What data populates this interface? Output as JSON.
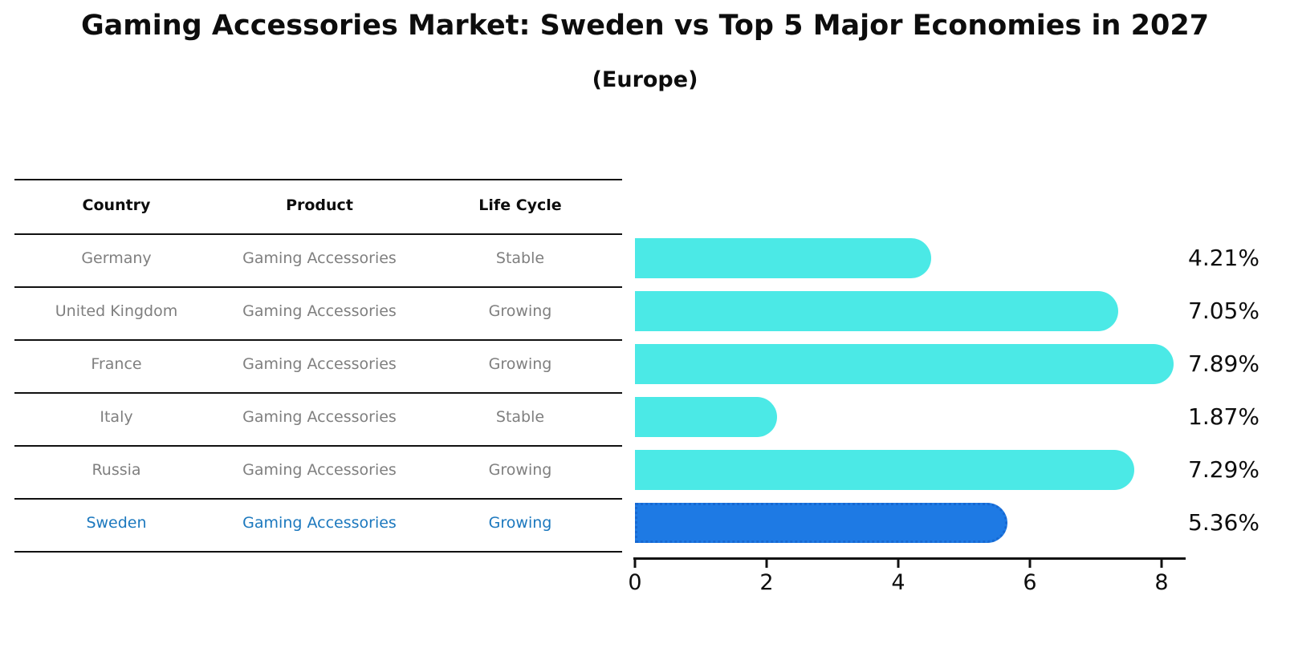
{
  "title": "Gaming Accessories Market: Sweden vs Top 5 Major Economies in 2027",
  "subtitle": "(Europe)",
  "colors": {
    "bar": "#4BE9E6",
    "highlight_bar": "#1e7ae4",
    "highlight_dot": "#1668d2",
    "highlight_text": "#1b78be",
    "text": "#0d0d0d",
    "muted_text": "#7f7f7f"
  },
  "table": {
    "headers": [
      "Country",
      "Product",
      "Life Cycle"
    ],
    "rows": [
      {
        "country": "Germany",
        "product": "Gaming Accessories",
        "life_cycle": "Stable",
        "highlighted": false
      },
      {
        "country": "United Kingdom",
        "product": "Gaming Accessories",
        "life_cycle": "Growing",
        "highlighted": false
      },
      {
        "country": "France",
        "product": "Gaming Accessories",
        "life_cycle": "Growing",
        "highlighted": false
      },
      {
        "country": "Italy",
        "product": "Gaming Accessories",
        "life_cycle": "Stable",
        "highlighted": false
      },
      {
        "country": "Russia",
        "product": "Gaming Accessories",
        "life_cycle": "Growing",
        "highlighted": false
      },
      {
        "country": "Sweden",
        "product": "Gaming Accessories",
        "life_cycle": "Growing",
        "highlighted": true
      }
    ]
  },
  "chart_data": {
    "type": "bar",
    "orientation": "horizontal",
    "title": "Gaming Accessories Market: Sweden vs Top 5 Major Economies in 2027",
    "subtitle": "(Europe)",
    "categories": [
      "Germany",
      "United Kingdom",
      "France",
      "Italy",
      "Russia",
      "Sweden"
    ],
    "values": [
      4.21,
      7.05,
      7.89,
      1.87,
      7.29,
      5.36
    ],
    "labels": [
      "4.21%",
      "7.05%",
      "7.89%",
      "1.87%",
      "7.29%",
      "5.36%"
    ],
    "unit": "%",
    "highlight_index": 5,
    "xlabel": "",
    "ylabel": "",
    "xlim": [
      0,
      8.4
    ],
    "x_ticks": [
      0,
      2,
      4,
      6,
      8
    ],
    "grid": false,
    "legend": false
  }
}
